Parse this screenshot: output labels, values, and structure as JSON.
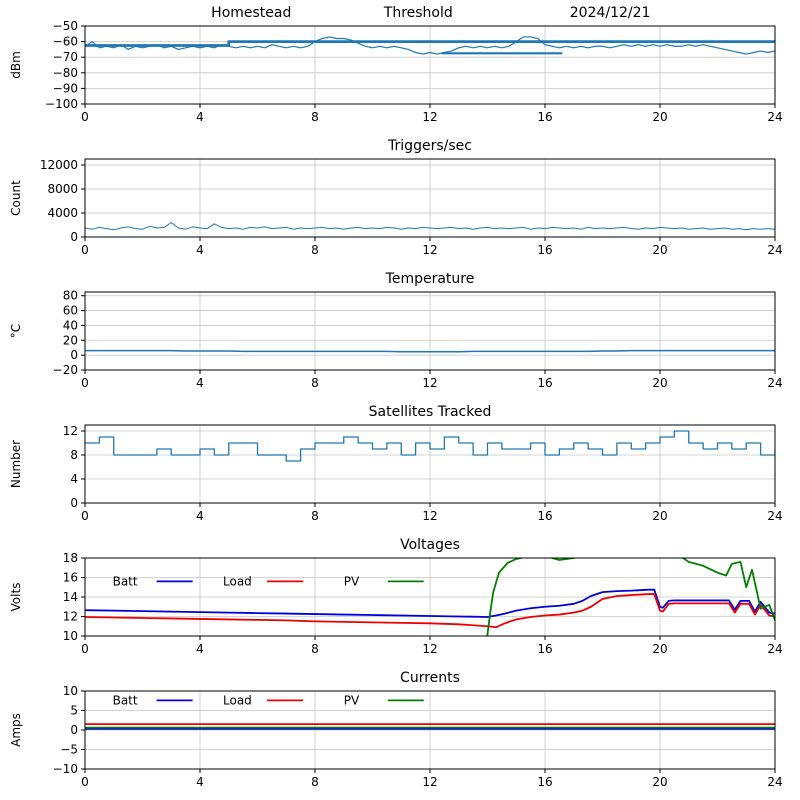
{
  "figure_bg": "#ffffff",
  "accent_colors": {
    "mpl_blue": "#1f77b4",
    "batt_blue": "#0000dd",
    "load_red": "#ee0000",
    "pv_green": "#008000"
  },
  "chart_data": [
    {
      "id": "signal",
      "type": "line",
      "titles": [
        {
          "text": "Homestead",
          "xfrac": 0.241
        },
        {
          "text": "Threshold",
          "xfrac": 0.483
        },
        {
          "text": "2024/12/21",
          "xfrac": 0.761
        }
      ],
      "ylabel": "dBm",
      "xlim": [
        0,
        24
      ],
      "xticks": [
        0,
        4,
        8,
        12,
        16,
        20,
        24
      ],
      "ylim": [
        -100,
        -50
      ],
      "yticks": [
        -100,
        -90,
        -80,
        -70,
        -60,
        -50
      ],
      "series": [
        {
          "name": "Signal",
          "color": "#1f77b4",
          "lw": 1.2,
          "x0": 0,
          "dx": 0.25,
          "y": [
            -63,
            -60,
            -64,
            -63,
            -64,
            -62,
            -65,
            -63,
            -64,
            -63,
            -62,
            -64,
            -63,
            -65,
            -64,
            -63,
            -64,
            -63,
            -64,
            -62,
            -63,
            -64,
            -63,
            -64,
            -63,
            -64,
            -62,
            -63,
            -64,
            -63,
            -64,
            -63,
            -60,
            -58,
            -57,
            -58,
            -58,
            -59,
            -61,
            -63,
            -64,
            -63,
            -64,
            -63,
            -64,
            -65,
            -67,
            -68,
            -67,
            -68,
            -67,
            -66,
            -64,
            -63,
            -64,
            -63,
            -64,
            -63,
            -64,
            -63,
            -60,
            -57,
            -57,
            -58,
            -62,
            -63,
            -64,
            -63,
            -64,
            -63,
            -64,
            -63,
            -63,
            -64,
            -63,
            -62,
            -63,
            -62,
            -63,
            -62,
            -63,
            -62,
            -63,
            -63,
            -62,
            -63,
            -62,
            -63,
            -64,
            -65,
            -66,
            -67,
            -68,
            -67,
            -66,
            -67,
            -66
          ]
        },
        {
          "name": "Threshold",
          "color": "#1f77b4",
          "lw": 2.8,
          "x": [
            0,
            5,
            5,
            24
          ],
          "y": [
            -62.5,
            -62.5,
            -60,
            -60
          ]
        },
        {
          "name": "ThresholdLow",
          "color": "#1f77b4",
          "lw": 2.2,
          "x": [
            12.4,
            16.6
          ],
          "y": [
            -67.5,
            -67.5
          ]
        }
      ]
    },
    {
      "id": "triggers",
      "type": "line",
      "titles": [
        {
          "text": "Triggers/sec",
          "xfrac": 0.5
        }
      ],
      "ylabel": "Count",
      "xlim": [
        0,
        24
      ],
      "xticks": [
        0,
        4,
        8,
        12,
        16,
        20,
        24
      ],
      "ylim": [
        0,
        13000
      ],
      "yticks": [
        0,
        4000,
        8000,
        12000
      ],
      "series": [
        {
          "name": "Triggers",
          "color": "#1f77b4",
          "lw": 1.0,
          "x0": 0,
          "dx": 0.25,
          "y": [
            1500,
            1300,
            1600,
            1400,
            1200,
            1500,
            1700,
            1400,
            1300,
            1800,
            1500,
            1600,
            2400,
            1500,
            1300,
            1700,
            1500,
            1400,
            2200,
            1600,
            1400,
            1500,
            1300,
            1600,
            1500,
            1700,
            1400,
            1500,
            1600,
            1300,
            1500,
            1400,
            1500,
            1600,
            1400,
            1500,
            1300,
            1500,
            1600,
            1400,
            1500,
            1400,
            1600,
            1500,
            1300,
            1500,
            1400,
            1600,
            1500,
            1400,
            1500,
            1600,
            1400,
            1500,
            1300,
            1500,
            1600,
            1400,
            1500,
            1400,
            1500,
            1600,
            1300,
            1500,
            1400,
            1600,
            1500,
            1400,
            1500,
            1300,
            1600,
            1400,
            1500,
            1400,
            1500,
            1600,
            1400,
            1300,
            1500,
            1400,
            1600,
            1500,
            1400,
            1500,
            1300,
            1400,
            1500,
            1300,
            1400,
            1500,
            1300,
            1400,
            1200,
            1400,
            1300,
            1400,
            1300
          ]
        }
      ]
    },
    {
      "id": "temperature",
      "type": "line",
      "titles": [
        {
          "text": "Temperature",
          "xfrac": 0.5
        }
      ],
      "ylabel": "°C",
      "xlim": [
        0,
        24
      ],
      "xticks": [
        0,
        4,
        8,
        12,
        16,
        20,
        24
      ],
      "ylim": [
        -20,
        85
      ],
      "yticks": [
        -20,
        0,
        20,
        40,
        60,
        80
      ],
      "series": [
        {
          "name": "Temperature",
          "color": "#1f77b4",
          "lw": 1.5,
          "x0": 0,
          "dx": 0.5,
          "y": [
            6,
            6,
            6,
            6,
            6,
            6,
            6,
            5.5,
            5.5,
            5.5,
            5.5,
            5,
            5,
            5,
            5,
            5,
            5,
            5,
            5,
            5,
            5,
            5,
            4.5,
            4.5,
            4.5,
            4.5,
            4.5,
            5,
            5,
            5,
            5,
            5,
            5,
            5,
            5,
            5,
            5.5,
            5.5,
            6,
            6,
            6,
            6,
            6,
            6,
            6,
            6,
            6,
            6,
            6
          ]
        }
      ]
    },
    {
      "id": "satellites",
      "type": "line",
      "titles": [
        {
          "text": "Satellites Tracked",
          "xfrac": 0.5
        }
      ],
      "ylabel": "Number",
      "xlim": [
        0,
        24
      ],
      "xticks": [
        0,
        4,
        8,
        12,
        16,
        20,
        24
      ],
      "ylim": [
        0,
        13
      ],
      "yticks": [
        0,
        4,
        8,
        12
      ],
      "series": [
        {
          "name": "Satellites",
          "color": "#1f77b4",
          "lw": 1.3,
          "step": true,
          "x0": 0,
          "dx": 0.5,
          "y": [
            10,
            11,
            8,
            8,
            8,
            9,
            8,
            8,
            9,
            8,
            10,
            10,
            8,
            8,
            7,
            9,
            10,
            10,
            11,
            10,
            9,
            10,
            8,
            10,
            9,
            11,
            10,
            8,
            10,
            9,
            9,
            10,
            8,
            9,
            10,
            9,
            8,
            10,
            9,
            10,
            11,
            12,
            10,
            9,
            10,
            9,
            10,
            8,
            9
          ]
        }
      ]
    },
    {
      "id": "voltages",
      "type": "line",
      "titles": [
        {
          "text": "Voltages",
          "xfrac": 0.5
        }
      ],
      "ylabel": "Volts",
      "xlim": [
        0,
        24
      ],
      "xticks": [
        0,
        4,
        8,
        12,
        16,
        20,
        24
      ],
      "ylim": [
        10,
        18
      ],
      "yticks": [
        10,
        12,
        14,
        16,
        18
      ],
      "legend": {
        "yfrac": 0.3,
        "items": [
          {
            "label": "Batt",
            "color": "#0000dd",
            "xfrac": 0.04
          },
          {
            "label": "Load",
            "color": "#ee0000",
            "xfrac": 0.2
          },
          {
            "label": "PV",
            "color": "#008000",
            "xfrac": 0.375
          }
        ]
      },
      "series": [
        {
          "name": "Batt",
          "color": "#0000dd",
          "lw": 1.8,
          "x": [
            0,
            1,
            2,
            3,
            4,
            5,
            6,
            7,
            8,
            9,
            10,
            11,
            12,
            13,
            13.5,
            14,
            14.3,
            14.6,
            15,
            15.5,
            16,
            16.5,
            17,
            17.3,
            17.6,
            18,
            18.5,
            19,
            19.3,
            19.6,
            19.8,
            20,
            20.1,
            20.3,
            20.5,
            21,
            21.5,
            22,
            22.4,
            22.6,
            22.8,
            23,
            23.1,
            23.3,
            23.5,
            23.8,
            24
          ],
          "y": [
            12.65,
            12.6,
            12.55,
            12.5,
            12.45,
            12.4,
            12.35,
            12.3,
            12.25,
            12.2,
            12.15,
            12.1,
            12.05,
            12.0,
            11.98,
            11.95,
            12.1,
            12.3,
            12.6,
            12.85,
            13.0,
            13.1,
            13.3,
            13.6,
            14.1,
            14.5,
            14.6,
            14.65,
            14.7,
            14.75,
            14.75,
            13.0,
            12.9,
            13.6,
            13.65,
            13.65,
            13.65,
            13.65,
            13.65,
            12.7,
            13.6,
            13.6,
            13.6,
            12.5,
            13.5,
            12.4,
            12.3
          ]
        },
        {
          "name": "Load",
          "color": "#ee0000",
          "lw": 1.8,
          "x": [
            0,
            1,
            2,
            3,
            4,
            5,
            6,
            7,
            8,
            9,
            10,
            11,
            12,
            13,
            13.5,
            14,
            14.3,
            14.6,
            15,
            15.5,
            16,
            16.5,
            17,
            17.3,
            17.6,
            18,
            18.5,
            19,
            19.3,
            19.6,
            19.8,
            20,
            20.1,
            20.3,
            20.5,
            21,
            21.5,
            22,
            22.4,
            22.6,
            22.8,
            23,
            23.1,
            23.3,
            23.5,
            23.8,
            24
          ],
          "y": [
            11.95,
            11.9,
            11.85,
            11.8,
            11.75,
            11.7,
            11.65,
            11.6,
            11.5,
            11.45,
            11.4,
            11.35,
            11.3,
            11.2,
            11.1,
            11.0,
            10.9,
            11.3,
            11.7,
            11.95,
            12.1,
            12.2,
            12.4,
            12.6,
            13.0,
            13.8,
            14.1,
            14.2,
            14.25,
            14.3,
            14.3,
            12.6,
            12.5,
            13.3,
            13.35,
            13.35,
            13.35,
            13.35,
            13.35,
            12.4,
            13.3,
            13.3,
            13.3,
            12.2,
            13.2,
            12.1,
            12.0
          ]
        },
        {
          "name": "PV",
          "color": "#008000",
          "lw": 1.8,
          "x": [
            0,
            13.9,
            14.0,
            14.1,
            14.2,
            14.4,
            14.7,
            15.0,
            15.3,
            15.6,
            16.0,
            16.5,
            17.0,
            17.5,
            18,
            19,
            20,
            20.5,
            20.8,
            21,
            21.5,
            22,
            22.3,
            22.5,
            22.8,
            23,
            23.2,
            23.5,
            23.8,
            24
          ],
          "y": [
            0,
            0,
            10.2,
            12.5,
            14.5,
            16.5,
            17.5,
            17.9,
            18.1,
            18.3,
            18.2,
            17.8,
            18.0,
            18.4,
            18.6,
            18.8,
            18.6,
            18.4,
            18.0,
            17.6,
            17.2,
            16.5,
            16.2,
            17.4,
            17.6,
            15.0,
            16.8,
            12.8,
            13.2,
            11.6
          ]
        }
      ]
    },
    {
      "id": "currents",
      "type": "line",
      "titles": [
        {
          "text": "Currents",
          "xfrac": 0.5
        }
      ],
      "ylabel": "Amps",
      "xlim": [
        0,
        24
      ],
      "xticks": [
        0,
        4,
        8,
        12,
        16,
        20,
        24
      ],
      "ylim": [
        -10,
        10
      ],
      "yticks": [
        -10,
        -5,
        0,
        5,
        10
      ],
      "legend": {
        "yfrac": 0.12,
        "items": [
          {
            "label": "Batt",
            "color": "#0000dd",
            "xfrac": 0.04
          },
          {
            "label": "Load",
            "color": "#ee0000",
            "xfrac": 0.2
          },
          {
            "label": "PV",
            "color": "#008000",
            "xfrac": 0.375
          }
        ]
      },
      "series": [
        {
          "name": "Batt",
          "color": "#0000dd",
          "lw": 1.8,
          "x": [
            0,
            6,
            12,
            18,
            24
          ],
          "y": [
            0.3,
            0.3,
            0.3,
            0.3,
            0.3
          ]
        },
        {
          "name": "Load",
          "color": "#ee0000",
          "lw": 1.8,
          "x": [
            0,
            6,
            12,
            18,
            24
          ],
          "y": [
            1.5,
            1.5,
            1.5,
            1.5,
            1.5
          ]
        },
        {
          "name": "PV",
          "color": "#008000",
          "lw": 1.8,
          "x": [
            0,
            6,
            12,
            18,
            24
          ],
          "y": [
            0.6,
            0.6,
            0.6,
            0.6,
            0.6
          ]
        }
      ]
    }
  ]
}
